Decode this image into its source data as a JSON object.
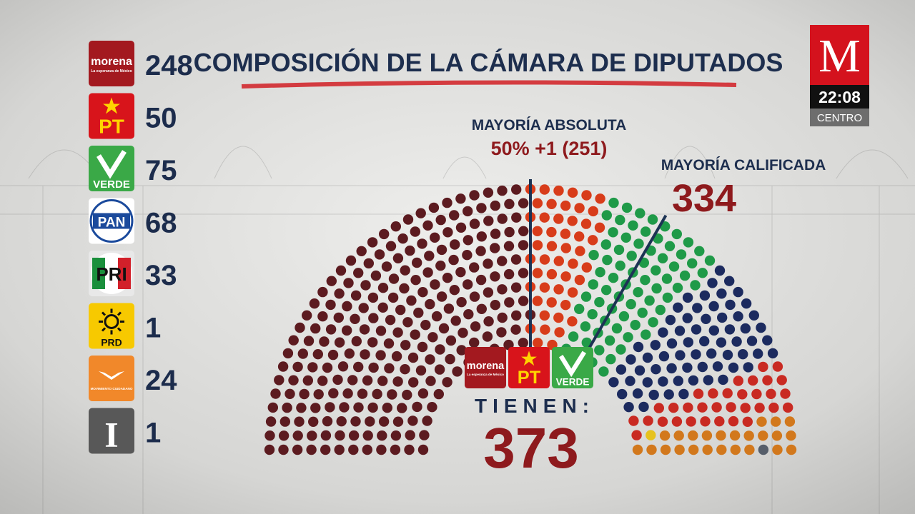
{
  "chart_data": {
    "type": "parliament",
    "title": "COMPOSICIÓN DE LA CÁMARA DE DIPUTADOS",
    "categories": [
      "morena",
      "PT",
      "VERDE",
      "PAN",
      "PRI",
      "PRD",
      "MOVIMIENTO CIUDADANO",
      "I"
    ],
    "values": [
      248,
      50,
      75,
      68,
      33,
      1,
      24,
      1
    ],
    "colors": [
      "#5c1b20",
      "#d83c1a",
      "#1f9a48",
      "#1c2b5f",
      "#c92a22",
      "#e6c21e",
      "#d2781c",
      "#565e6a"
    ],
    "annotations": [
      {
        "label": "MAYORÍA ABSOLUTA",
        "value": 251,
        "value_label": "50% +1 (251)"
      },
      {
        "label": "MAYORÍA CALIFICADA",
        "value": 334
      }
    ],
    "coalition": {
      "label": "TIENEN:",
      "value": 373
    }
  },
  "logos": {
    "morena_tagline": "La esperanza de México"
  },
  "broadcast": {
    "brand": "M",
    "time": "22:08",
    "zone": "CENTRO"
  }
}
